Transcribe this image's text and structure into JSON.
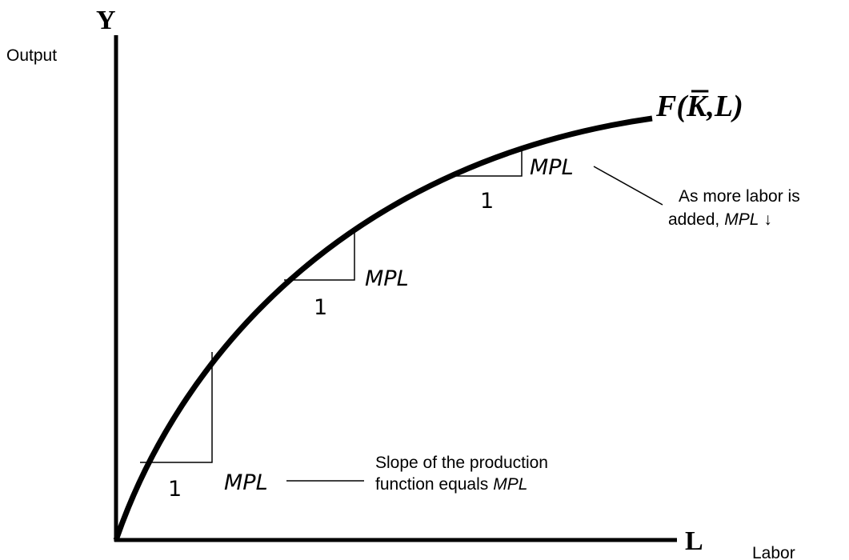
{
  "axes": {
    "y_symbol": "Y",
    "y_label": "Output",
    "x_symbol": "L",
    "x_label": "Labor"
  },
  "curve_label": {
    "prefix": "F(",
    "symbol": "K",
    "suffix": ",L)"
  },
  "steps": [
    {
      "rise": "MPL",
      "run": "1"
    },
    {
      "rise": "MPL",
      "run": "1"
    },
    {
      "rise": "MPL",
      "run": "1"
    }
  ],
  "annotations": [
    {
      "line1": "Slope of the production",
      "line2": "function equals",
      "line2_italic": "MPL"
    },
    {
      "line1": "As more labor is",
      "line2": "added,",
      "line2_italic": "MPL",
      "line2_suffix": "↓"
    }
  ]
}
